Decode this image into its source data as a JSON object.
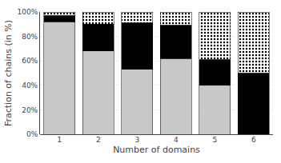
{
  "chart_data": {
    "type": "bar",
    "stacked": true,
    "xlabel": "Number of domains",
    "ylabel": "Fraction of chains (in %)",
    "categories": [
      "1",
      "2",
      "3",
      "4",
      "5",
      "6"
    ],
    "series": [
      {
        "color": "#c8c8c8",
        "values": [
          92,
          68,
          53,
          62,
          40,
          0
        ]
      },
      {
        "color": "#000000",
        "values": [
          5,
          22,
          38,
          27,
          21,
          50
        ]
      },
      {
        "color": "#ffffff",
        "marker": "dots",
        "values": [
          3,
          10,
          9,
          11,
          39,
          50
        ]
      }
    ],
    "ylim": [
      0,
      100
    ],
    "yticks": [
      {
        "value": 0,
        "label": "0%"
      },
      {
        "value": 20,
        "label": "20%"
      },
      {
        "value": 40,
        "label": "40%"
      },
      {
        "value": 60,
        "label": "60%"
      },
      {
        "value": 80,
        "label": "80%"
      },
      {
        "value": 100,
        "label": "100%"
      }
    ],
    "grid": true
  }
}
